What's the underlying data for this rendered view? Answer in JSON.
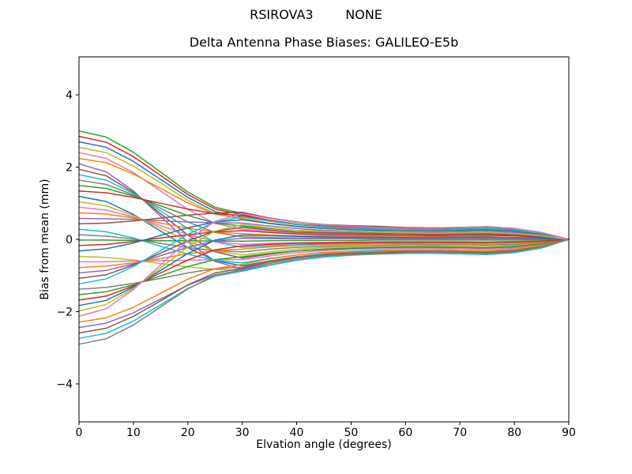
{
  "figure": {
    "suptitle": "RSIROVA3        NONE",
    "title": "Delta Antenna Phase Biases: GALILEO-E5b",
    "xlabel": "Elvation angle (degrees)",
    "ylabel": "Bias from mean (mm)",
    "background_color": "#ffffff",
    "axis_color": "#000000"
  },
  "chart_data": {
    "type": "line",
    "title": "Delta Antenna Phase Biases: GALILEO-E5b",
    "suptitle": "RSIROVA3        NONE",
    "xlabel": "Elvation angle (degrees)",
    "ylabel": "Bias from mean (mm)",
    "grid": false,
    "legend": false,
    "xlim": [
      0,
      90
    ],
    "ylim": [
      -5.05,
      5.05
    ],
    "xticks": {
      "values": [
        0,
        10,
        20,
        30,
        40,
        50,
        60,
        70,
        80,
        90
      ],
      "labels": [
        "0",
        "10",
        "20",
        "30",
        "40",
        "50",
        "60",
        "70",
        "80",
        "90"
      ]
    },
    "yticks": {
      "values": [
        -4,
        -2,
        0,
        2,
        4
      ],
      "labels": [
        "−4",
        "−2",
        "0",
        "2",
        "4"
      ]
    },
    "axis_color": "#000000",
    "line_width": 1.5,
    "palette": [
      "#1f77b4",
      "#ff7f0e",
      "#2ca02c",
      "#d62728",
      "#9467bd",
      "#8c564b",
      "#e377c2",
      "#7f7f7f",
      "#bcbd22",
      "#17becf"
    ],
    "x": [
      0,
      5,
      10,
      15,
      20,
      25,
      30,
      35,
      40,
      45,
      50,
      55,
      60,
      65,
      70,
      75,
      80,
      85,
      90
    ],
    "series": [
      {
        "c": 2,
        "values": [
          3.0,
          2.83,
          2.41,
          1.86,
          1.31,
          0.89,
          0.72,
          0.59,
          0.48,
          0.4,
          0.36,
          0.33,
          0.32,
          0.32,
          0.33,
          0.35,
          0.3,
          0.19,
          0
        ]
      },
      {
        "c": 3,
        "values": [
          2.85,
          2.69,
          2.29,
          1.77,
          1.24,
          0.84,
          0.68,
          0.53,
          0.42,
          0.37,
          0.34,
          0.33,
          0.3,
          0.29,
          0.3,
          0.31,
          0.27,
          0.17,
          0
        ]
      },
      {
        "c": 0,
        "values": [
          2.7,
          2.55,
          2.16,
          1.66,
          1.16,
          0.77,
          0.62,
          0.51,
          0.41,
          0.35,
          0.31,
          0.29,
          0.27,
          0.27,
          0.29,
          0.3,
          0.26,
          0.17,
          0
        ]
      },
      {
        "c": 8,
        "values": [
          2.55,
          2.4,
          2.03,
          1.56,
          1.08,
          0.71,
          0.56,
          0.44,
          0.35,
          0.3,
          0.28,
          0.27,
          0.25,
          0.24,
          0.25,
          0.26,
          0.22,
          0.14,
          0
        ]
      },
      {
        "c": 6,
        "values": [
          2.4,
          2.24,
          1.85,
          1.34,
          0.83,
          0.44,
          0.28,
          0.23,
          0.18,
          0.16,
          0.14,
          0.13,
          0.12,
          0.12,
          0.13,
          0.13,
          0.12,
          0.08,
          0
        ]
      },
      {
        "c": 1,
        "values": [
          2.24,
          2.12,
          1.81,
          1.41,
          1.01,
          0.7,
          0.58,
          0.45,
          0.36,
          0.31,
          0.29,
          0.28,
          0.26,
          0.24,
          0.26,
          0.27,
          0.23,
          0.15,
          0
        ]
      },
      {
        "c": 4,
        "values": [
          2.09,
          1.87,
          1.34,
          0.64,
          -0.07,
          -0.61,
          -0.82,
          -0.67,
          -0.54,
          -0.46,
          -0.41,
          -0.38,
          -0.36,
          -0.36,
          -0.38,
          -0.39,
          -0.34,
          -0.22,
          0
        ]
      },
      {
        "c": 5,
        "values": [
          1.94,
          1.76,
          1.3,
          0.71,
          0.12,
          -0.34,
          -0.52,
          -0.41,
          -0.32,
          -0.28,
          -0.26,
          -0.25,
          -0.23,
          -0.22,
          -0.23,
          -0.24,
          -0.21,
          -0.13,
          0
        ]
      },
      {
        "c": 9,
        "values": [
          1.79,
          1.64,
          1.27,
          0.79,
          0.3,
          -0.07,
          -0.22,
          -0.18,
          -0.15,
          -0.12,
          -0.11,
          -0.1,
          -0.1,
          -0.1,
          -0.1,
          -0.11,
          -0.09,
          -0.06,
          0
        ]
      },
      {
        "c": 7,
        "values": [
          1.64,
          1.52,
          1.23,
          0.86,
          0.48,
          0.19,
          0.07,
          0.05,
          0.04,
          0.04,
          0.04,
          0.03,
          0.03,
          0.03,
          0.03,
          0.03,
          0.03,
          0.02,
          0
        ]
      },
      {
        "c": 2,
        "values": [
          1.49,
          1.41,
          1.2,
          0.93,
          0.66,
          0.45,
          0.37,
          0.3,
          0.24,
          0.21,
          0.19,
          0.17,
          0.16,
          0.16,
          0.17,
          0.18,
          0.16,
          0.1,
          0
        ]
      },
      {
        "c": 3,
        "values": [
          1.34,
          1.29,
          1.16,
          1.0,
          0.84,
          0.71,
          0.66,
          0.51,
          0.41,
          0.36,
          0.33,
          0.32,
          0.29,
          0.28,
          0.29,
          0.3,
          0.26,
          0.17,
          0
        ]
      },
      {
        "c": 0,
        "values": [
          1.19,
          1.05,
          0.69,
          0.23,
          -0.23,
          -0.59,
          -0.73,
          -0.6,
          -0.48,
          -0.41,
          -0.37,
          -0.34,
          -0.32,
          -0.32,
          -0.34,
          -0.35,
          -0.31,
          -0.2,
          0
        ]
      },
      {
        "c": 8,
        "values": [
          1.04,
          0.93,
          0.66,
          0.31,
          -0.05,
          -0.32,
          -0.43,
          -0.34,
          -0.27,
          -0.23,
          -0.22,
          -0.21,
          -0.19,
          -0.18,
          -0.19,
          -0.2,
          -0.17,
          -0.11,
          0
        ]
      },
      {
        "c": 6,
        "values": [
          0.89,
          0.81,
          0.62,
          0.38,
          0.13,
          -0.06,
          -0.14,
          -0.11,
          -0.09,
          -0.08,
          -0.07,
          -0.06,
          -0.06,
          -0.06,
          -0.06,
          -0.07,
          -0.06,
          -0.04,
          0
        ]
      },
      {
        "c": 1,
        "values": [
          0.74,
          0.7,
          0.59,
          0.45,
          0.31,
          0.2,
          0.16,
          0.12,
          0.1,
          0.09,
          0.08,
          0.08,
          0.07,
          0.07,
          0.07,
          0.07,
          0.06,
          0.04,
          0
        ]
      },
      {
        "c": 4,
        "values": [
          0.58,
          0.57,
          0.55,
          0.52,
          0.48,
          0.46,
          0.45,
          0.37,
          0.3,
          0.25,
          0.23,
          0.21,
          0.2,
          0.2,
          0.21,
          0.22,
          0.19,
          0.12,
          0
        ]
      },
      {
        "c": 5,
        "values": [
          0.43,
          0.45,
          0.51,
          0.59,
          0.67,
          0.73,
          0.75,
          0.59,
          0.47,
          0.41,
          0.38,
          0.36,
          0.33,
          0.32,
          0.33,
          0.35,
          0.3,
          0.19,
          0
        ]
      },
      {
        "c": 9,
        "values": [
          0.28,
          0.21,
          0.04,
          -0.19,
          -0.41,
          -0.58,
          -0.65,
          -0.53,
          -0.43,
          -0.36,
          -0.33,
          -0.3,
          -0.29,
          -0.29,
          -0.3,
          -0.31,
          -0.27,
          -0.18,
          0
        ]
      },
      {
        "c": 7,
        "values": [
          0.13,
          0.09,
          0.01,
          -0.11,
          -0.23,
          -0.31,
          -0.35,
          -0.27,
          -0.22,
          -0.19,
          -0.18,
          -0.17,
          -0.15,
          -0.15,
          -0.15,
          -0.16,
          -0.14,
          -0.09,
          0
        ]
      },
      {
        "c": 2,
        "values": [
          -0.02,
          -0.02,
          -0.03,
          -0.04,
          -0.04,
          -0.05,
          -0.05,
          -0.04,
          -0.03,
          -0.03,
          -0.03,
          -0.02,
          -0.02,
          -0.02,
          -0.02,
          -0.02,
          -0.02,
          -0.01,
          0
        ]
      },
      {
        "c": 3,
        "values": [
          -0.17,
          -0.14,
          -0.06,
          0.04,
          0.13,
          0.21,
          0.24,
          0.19,
          0.15,
          0.13,
          0.12,
          0.12,
          0.11,
          0.1,
          0.11,
          0.11,
          0.1,
          0.06,
          0
        ]
      },
      {
        "c": 0,
        "values": [
          -0.32,
          -0.26,
          -0.1,
          0.11,
          0.32,
          0.48,
          0.54,
          0.44,
          0.36,
          0.3,
          0.27,
          0.25,
          0.24,
          0.24,
          0.25,
          0.26,
          0.23,
          0.15,
          0
        ]
      },
      {
        "c": 8,
        "values": [
          -0.47,
          -0.5,
          -0.57,
          -0.67,
          -0.76,
          -0.83,
          -0.86,
          -0.67,
          -0.53,
          -0.46,
          -0.43,
          -0.41,
          -0.38,
          -0.36,
          -0.38,
          -0.4,
          -0.34,
          -0.22,
          0
        ]
      },
      {
        "c": 6,
        "values": [
          -0.62,
          -0.62,
          -0.6,
          -0.59,
          -0.58,
          -0.56,
          -0.56,
          -0.46,
          -0.37,
          -0.31,
          -0.28,
          -0.26,
          -0.25,
          -0.25,
          -0.26,
          -0.27,
          -0.24,
          -0.15,
          0
        ]
      },
      {
        "c": 1,
        "values": [
          -0.78,
          -0.74,
          -0.65,
          -0.53,
          -0.4,
          -0.31,
          -0.27,
          -0.21,
          -0.17,
          -0.15,
          -0.14,
          -0.13,
          -0.12,
          -0.11,
          -0.12,
          -0.12,
          -0.11,
          -0.07,
          0
        ]
      },
      {
        "c": 4,
        "values": [
          -0.93,
          -0.86,
          -0.68,
          -0.45,
          -0.22,
          -0.04,
          0.03,
          0.02,
          0.02,
          0.02,
          0.02,
          0.01,
          0.01,
          0.01,
          0.01,
          0.01,
          0.01,
          0.01,
          0
        ]
      },
      {
        "c": 5,
        "values": [
          -1.08,
          -0.98,
          -0.71,
          -0.38,
          -0.04,
          0.23,
          0.33,
          0.26,
          0.2,
          0.18,
          0.17,
          0.16,
          0.15,
          0.14,
          0.15,
          0.15,
          0.13,
          0.08,
          0
        ]
      },
      {
        "c": 9,
        "values": [
          -1.23,
          -1.09,
          -0.75,
          -0.31,
          0.14,
          0.48,
          0.62,
          0.51,
          0.41,
          0.35,
          0.31,
          0.29,
          0.27,
          0.27,
          0.29,
          0.3,
          0.26,
          0.17,
          0
        ]
      },
      {
        "c": 7,
        "values": [
          -1.38,
          -1.33,
          -1.22,
          -1.08,
          -0.93,
          -0.81,
          -0.77,
          -0.6,
          -0.48,
          -0.42,
          -0.39,
          -0.37,
          -0.34,
          -0.32,
          -0.34,
          -0.35,
          -0.31,
          -0.19,
          0
        ]
      },
      {
        "c": 2,
        "values": [
          -1.53,
          -1.45,
          -1.26,
          -1.01,
          -0.75,
          -0.56,
          -0.48,
          -0.39,
          -0.32,
          -0.27,
          -0.24,
          -0.22,
          -0.21,
          -0.21,
          -0.22,
          -0.23,
          -0.2,
          -0.13,
          0
        ]
      },
      {
        "c": 3,
        "values": [
          -1.68,
          -1.57,
          -1.29,
          -0.93,
          -0.57,
          -0.29,
          -0.18,
          -0.14,
          -0.11,
          -0.1,
          -0.09,
          -0.09,
          -0.08,
          -0.08,
          -0.08,
          -0.08,
          -0.07,
          -0.05,
          0
        ]
      },
      {
        "c": 0,
        "values": [
          -1.83,
          -1.69,
          -1.32,
          -0.86,
          -0.39,
          -0.02,
          0.12,
          0.1,
          0.08,
          0.07,
          0.06,
          0.06,
          0.05,
          0.05,
          0.06,
          0.06,
          0.05,
          0.03,
          0
        ]
      },
      {
        "c": 8,
        "values": [
          -1.98,
          -1.8,
          -1.36,
          -0.79,
          -0.21,
          0.23,
          0.41,
          0.32,
          0.25,
          0.22,
          0.21,
          0.2,
          0.18,
          0.17,
          0.18,
          0.19,
          0.16,
          0.1,
          0
        ]
      },
      {
        "c": 6,
        "values": [
          -2.13,
          -1.92,
          -1.39,
          -0.71,
          -0.03,
          0.5,
          0.71,
          0.58,
          0.47,
          0.4,
          0.36,
          0.33,
          0.31,
          0.31,
          0.33,
          0.34,
          0.3,
          0.19,
          0
        ]
      },
      {
        "c": 1,
        "values": [
          -2.29,
          -2.17,
          -1.88,
          -1.49,
          -1.1,
          -0.81,
          -0.69,
          -0.54,
          -0.43,
          -0.37,
          -0.35,
          -0.33,
          -0.3,
          -0.29,
          -0.3,
          -0.32,
          -0.28,
          -0.17,
          0
        ]
      },
      {
        "c": 4,
        "values": [
          -2.44,
          -2.32,
          -2.03,
          -1.65,
          -1.27,
          -0.98,
          -0.86,
          -0.71,
          -0.57,
          -0.48,
          -0.43,
          -0.4,
          -0.38,
          -0.38,
          -0.4,
          -0.41,
          -0.36,
          -0.23,
          0
        ]
      },
      {
        "c": 5,
        "values": [
          -2.59,
          -2.46,
          -2.13,
          -1.7,
          -1.26,
          -0.93,
          -0.8,
          -0.62,
          -0.5,
          -0.43,
          -0.4,
          -0.38,
          -0.35,
          -0.34,
          -0.35,
          -0.37,
          -0.32,
          -0.2,
          0
        ]
      },
      {
        "c": 9,
        "values": [
          -2.74,
          -2.6,
          -2.26,
          -1.81,
          -1.36,
          -1.02,
          -0.88,
          -0.72,
          -0.58,
          -0.49,
          -0.44,
          -0.4,
          -0.39,
          -0.39,
          -0.4,
          -0.42,
          -0.37,
          -0.24,
          0
        ]
      },
      {
        "c": 7,
        "values": [
          -2.9,
          -2.75,
          -2.37,
          -1.87,
          -1.37,
          -0.99,
          -0.84,
          -0.66,
          -0.52,
          -0.45,
          -0.42,
          -0.4,
          -0.37,
          -0.35,
          -0.37,
          -0.39,
          -0.34,
          -0.21,
          0
        ]
      }
    ]
  }
}
